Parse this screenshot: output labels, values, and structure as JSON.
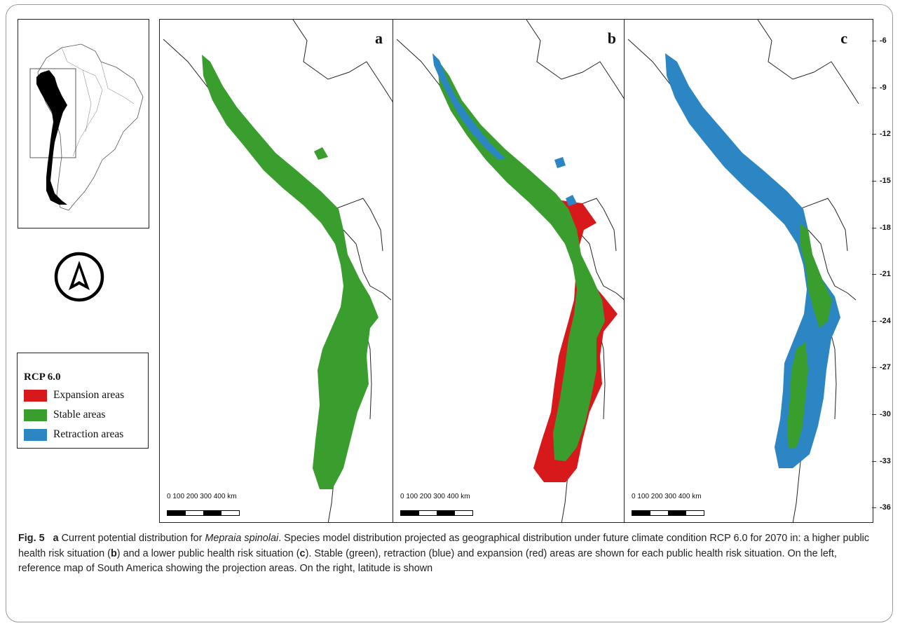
{
  "inset_map": {
    "label": "Reference map of South America"
  },
  "legend": {
    "title": "RCP 6.0",
    "items": [
      {
        "label": "Expansion areas",
        "color": "#d7191c"
      },
      {
        "label": "Stable areas",
        "color": "#3a9e2f"
      },
      {
        "label": "Retraction areas",
        "color": "#2c86c4"
      }
    ]
  },
  "panels": [
    {
      "letter": "a",
      "scale_text": "0   100  200  300  400 km"
    },
    {
      "letter": "b",
      "scale_text": "0   100  200  300  400 km"
    },
    {
      "letter": "c",
      "scale_text": "0   100  200  300  400 km"
    }
  ],
  "latitude_labels": [
    "-6",
    "-9",
    "-12",
    "-15",
    "-18",
    "-21",
    "-24",
    "-27",
    "-30",
    "-33",
    "-36"
  ],
  "caption": {
    "fig_label": "Fig. 5",
    "part_a": "a",
    "text_1": " Current potential distribution for ",
    "species": "Mepraia spinolai",
    "text_2": ". Species model distribution projected as geographical distribution under future climate condition RCP 6.0 for 2070 in: a higher public health risk situation (",
    "part_b": "b",
    "text_3": ") and a lower public health risk situation (",
    "part_c": "c",
    "text_4": "). Stable (green), retraction (blue) and expansion (red) areas are shown for each public health risk situation. On the left, reference map of South America showing the projection areas. On the right, latitude is shown"
  }
}
